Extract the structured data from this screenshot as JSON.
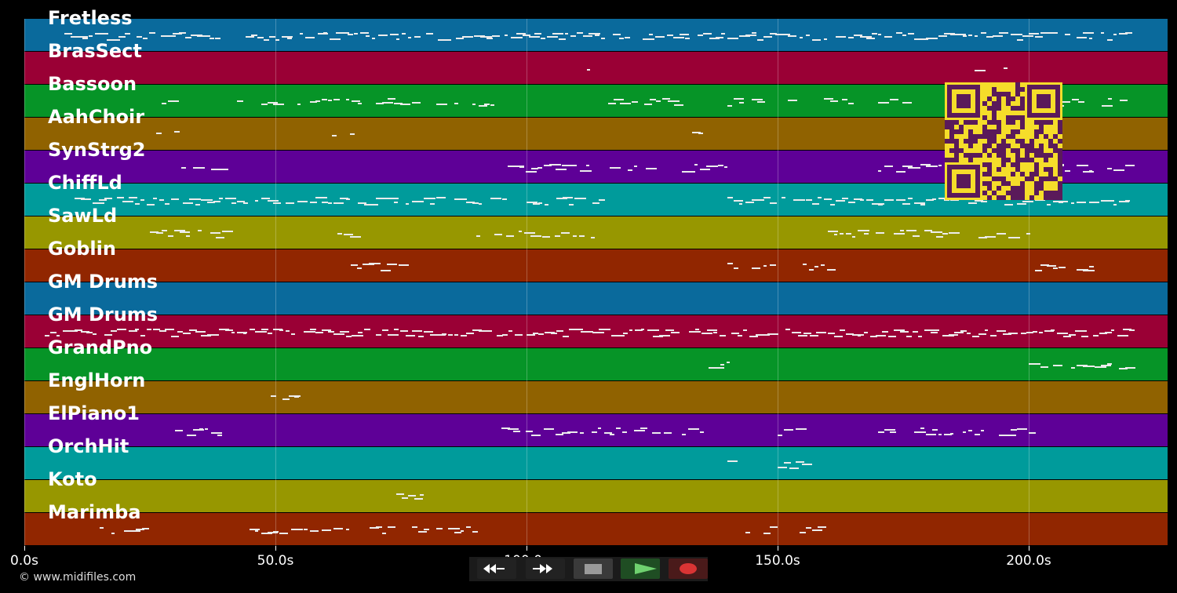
{
  "tracks": [
    {
      "name": "Fretless",
      "color": "#0a6a9c"
    },
    {
      "name": "BrasSect",
      "color": "#9a0035"
    },
    {
      "name": "Bassoon",
      "color": "#069427"
    },
    {
      "name": "AahChoir",
      "color": "#906200"
    },
    {
      "name": "SynStrg2",
      "color": "#5e0097"
    },
    {
      "name": "ChiffLd",
      "color": "#009b9b"
    },
    {
      "name": "SawLd",
      "color": "#979700"
    },
    {
      "name": "Goblin",
      "color": "#912600"
    },
    {
      "name": "GM Drums",
      "color": "#0a6a9c"
    },
    {
      "name": "GM Drums",
      "color": "#9a0035"
    },
    {
      "name": "GrandPno",
      "color": "#069427"
    },
    {
      "name": "EnglHorn",
      "color": "#906200"
    },
    {
      "name": "ElPiano1",
      "color": "#5e0097"
    },
    {
      "name": "OrchHit",
      "color": "#009b9b"
    },
    {
      "name": "Koto",
      "color": "#979700"
    },
    {
      "name": "Marimba",
      "color": "#912600"
    }
  ],
  "timeline": {
    "max_seconds": 228,
    "ticks": [
      {
        "t": 0,
        "label": "0.0s"
      },
      {
        "t": 50,
        "label": "50.0s"
      },
      {
        "t": 100,
        "label": "100.0s"
      },
      {
        "t": 150,
        "label": "150.0s"
      },
      {
        "t": 200,
        "label": "200.0s"
      }
    ]
  },
  "credit": "© www.midifiles.com",
  "controls": {
    "rewind_icon": "rewind-icon",
    "fast_forward_icon": "fast-forward-icon",
    "stop_icon": "stop-icon",
    "play_icon": "play-icon",
    "record_icon": "record-icon"
  }
}
